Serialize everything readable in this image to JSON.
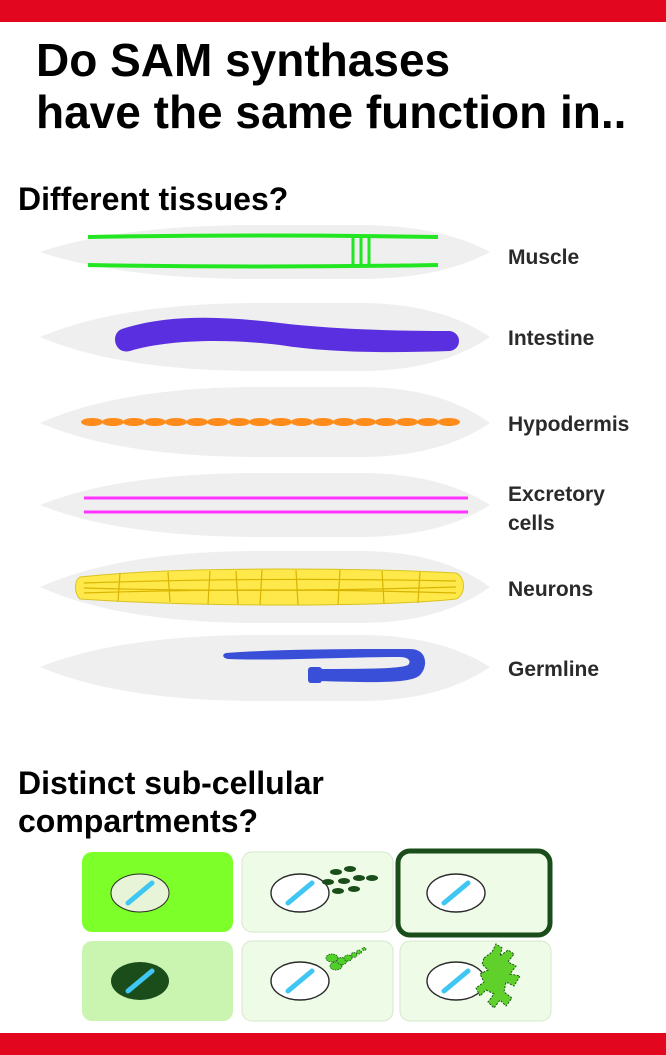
{
  "colors": {
    "accent_bar": "#e3061f",
    "worm_body": "#efefef",
    "muscle": "#22e622",
    "intestine": "#5a2fe0",
    "hypodermis": "#ff8c1a",
    "excretory": "#ff33ff",
    "neurons": "#ffe84a",
    "germline": "#3a4fd8",
    "cell_bright": "#7dff2a",
    "cell_pale": "#eefbe6",
    "cell_mid": "#c9f5b1",
    "cell_dark": "#1a4d1a",
    "nucleus_blue": "#3fc6f2"
  },
  "title": {
    "line1": "Do SAM synthases",
    "line2": "have the same function in.."
  },
  "tissues_heading": "Different tissues?",
  "tissues": [
    {
      "label": "Muscle"
    },
    {
      "label": "Intestine"
    },
    {
      "label": "Hypodermis"
    },
    {
      "label_line1": "Excretory",
      "label_line2": "cells"
    },
    {
      "label": "Neurons"
    },
    {
      "label": "Germline"
    }
  ],
  "compartments_heading_line1": "Distinct sub-cellular",
  "compartments_heading_line2": "compartments?"
}
